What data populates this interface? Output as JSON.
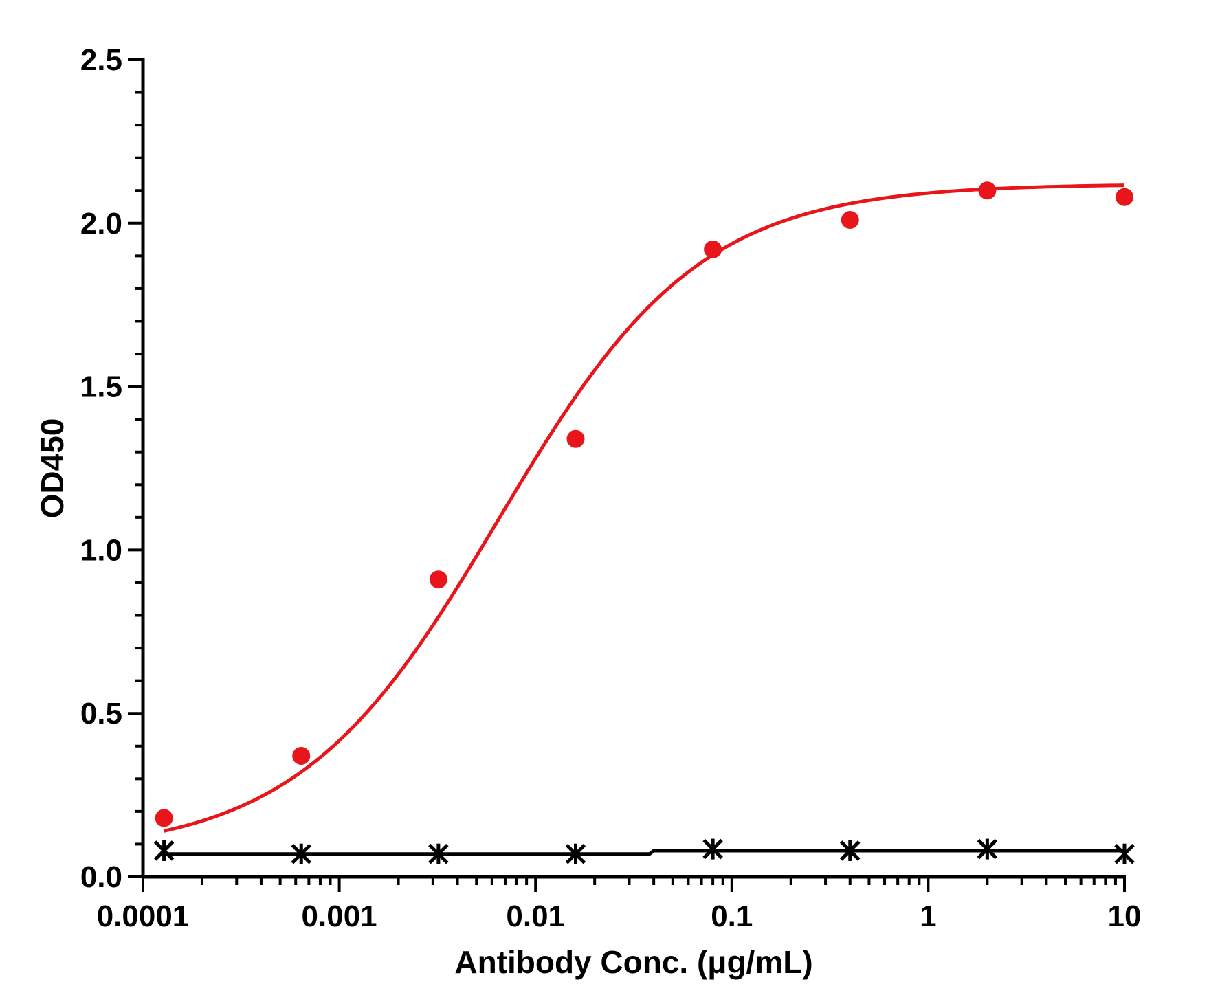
{
  "chart_data": {
    "type": "scatter",
    "xlabel": "Antibody Conc. (μg/mL)",
    "ylabel": "OD450",
    "xscale": "log",
    "xlim": [
      0.0001,
      10
    ],
    "ylim": [
      0,
      2.5
    ],
    "x_ticks": [
      {
        "value": 0.0001,
        "label": "0.0001"
      },
      {
        "value": 0.001,
        "label": "0.001"
      },
      {
        "value": 0.01,
        "label": "0.01"
      },
      {
        "value": 0.1,
        "label": "0.1"
      },
      {
        "value": 1,
        "label": "1"
      },
      {
        "value": 10,
        "label": "10"
      }
    ],
    "y_ticks": [
      {
        "value": 0,
        "label": "0.0"
      },
      {
        "value": 0.5,
        "label": "0.5"
      },
      {
        "value": 1.0,
        "label": "1.0"
      },
      {
        "value": 1.5,
        "label": "1.5"
      },
      {
        "value": 2.0,
        "label": "2.0"
      },
      {
        "value": 2.5,
        "label": "2.5"
      }
    ],
    "grid": false,
    "legend": "none",
    "series": [
      {
        "color": "#e8151b",
        "marker": "circle",
        "fit": "4PL",
        "points": [
          {
            "x": 0.000128,
            "y": 0.18
          },
          {
            "x": 0.00064,
            "y": 0.37
          },
          {
            "x": 0.0032,
            "y": 0.91
          },
          {
            "x": 0.016,
            "y": 1.34
          },
          {
            "x": 0.08,
            "y": 1.92
          },
          {
            "x": 0.4,
            "y": 2.01
          },
          {
            "x": 2,
            "y": 2.1
          },
          {
            "x": 10,
            "y": 2.08
          }
        ],
        "fit_params": {
          "bottom": 0.07,
          "top": 2.12,
          "ec50": 0.0065,
          "hill": 0.85
        }
      },
      {
        "color": "#000000",
        "marker": "asterisk",
        "fit": "line",
        "points": [
          {
            "x": 0.000128,
            "y": 0.08
          },
          {
            "x": 0.00064,
            "y": 0.07
          },
          {
            "x": 0.0032,
            "y": 0.07
          },
          {
            "x": 0.016,
            "y": 0.07
          },
          {
            "x": 0.08,
            "y": 0.085
          },
          {
            "x": 0.4,
            "y": 0.08
          },
          {
            "x": 2,
            "y": 0.085
          },
          {
            "x": 10,
            "y": 0.07
          }
        ],
        "line_values": {
          "low": 0.07,
          "high": 0.08,
          "step_x": 0.04
        }
      }
    ]
  }
}
